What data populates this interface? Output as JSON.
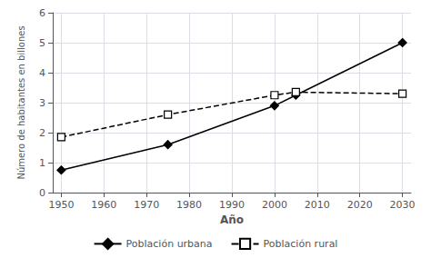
{
  "chart_data": {
    "type": "line",
    "xlabel": "Año",
    "ylabel": "Número de habitantes en billones",
    "x": [
      1950,
      1975,
      2000,
      2005,
      2030
    ],
    "series": [
      {
        "name": "Población urbana",
        "color": "#000000",
        "values": [
          0.75,
          1.6,
          2.9,
          3.25,
          5.0
        ],
        "marker": "diamond",
        "line_style": "solid"
      },
      {
        "name": "Población rural",
        "color": "#000000",
        "values": [
          1.85,
          2.6,
          3.25,
          3.35,
          3.3
        ],
        "marker": "open_square",
        "line_style": "dashed"
      }
    ],
    "xlim": [
      1948,
      2032
    ],
    "ylim": [
      0,
      6
    ],
    "xticks": [
      1950,
      1960,
      1970,
      1980,
      1990,
      2000,
      2010,
      2020,
      2030
    ],
    "yticks": [
      0,
      1,
      2,
      3,
      4,
      5,
      6
    ],
    "grid": true,
    "legend": "bottom"
  }
}
